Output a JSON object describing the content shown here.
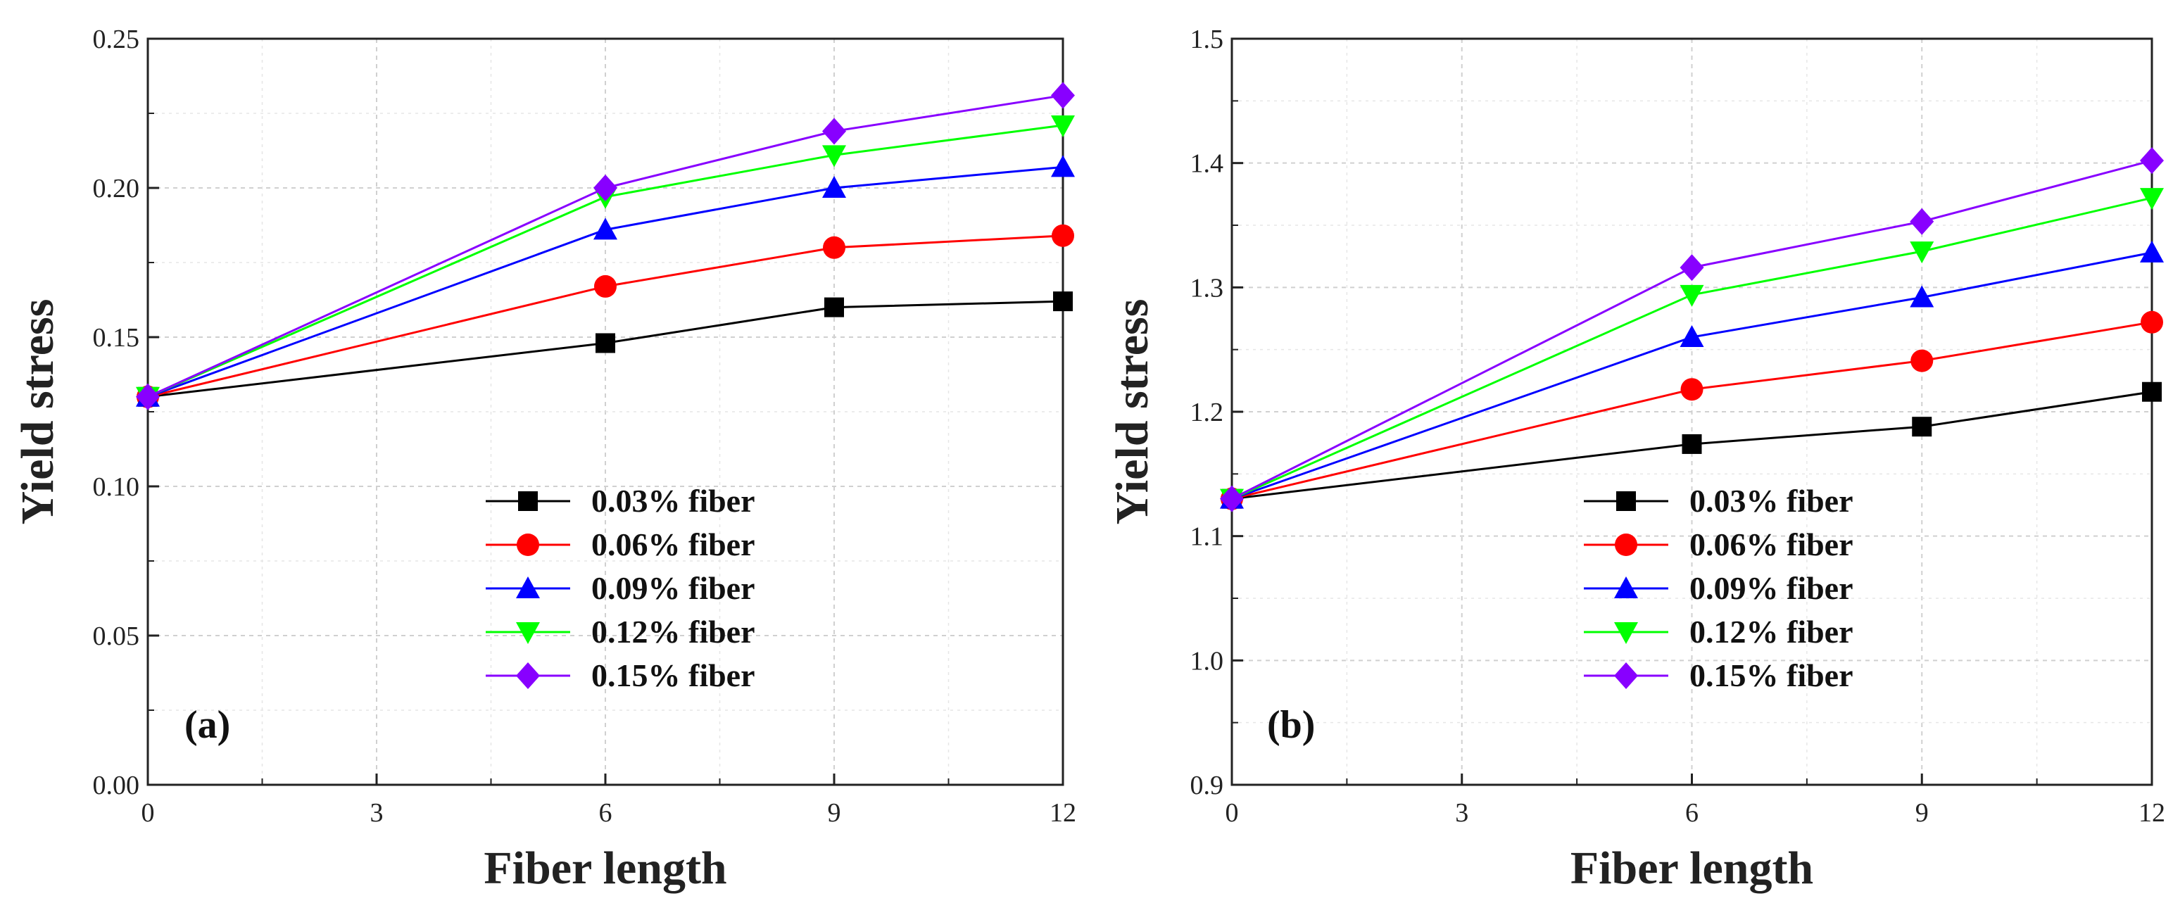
{
  "chart_data": [
    {
      "type": "line",
      "panel_label": "(a)",
      "xlabel": "Fiber length",
      "ylabel": "Yield stress",
      "x": [
        0,
        6,
        9,
        12
      ],
      "xlim": [
        0,
        12
      ],
      "ylim": [
        0.0,
        0.25
      ],
      "xticks": [
        "0",
        "3",
        "6",
        "9",
        "12"
      ],
      "yticks": [
        "0.00",
        "0.05",
        "0.10",
        "0.15",
        "0.20",
        "0.25"
      ],
      "grid": true,
      "legend_position": "lower-center",
      "series": [
        {
          "name": "0.03%  fiber",
          "color": "#000000",
          "marker": "square",
          "values": [
            0.13,
            0.148,
            0.16,
            0.162
          ]
        },
        {
          "name": "0.06%  fiber",
          "color": "#ff0000",
          "marker": "circle",
          "values": [
            0.13,
            0.167,
            0.18,
            0.184
          ]
        },
        {
          "name": "0.09%  fiber",
          "color": "#0000ff",
          "marker": "triangle-up",
          "values": [
            0.13,
            0.186,
            0.2,
            0.207
          ]
        },
        {
          "name": "0.12%  fiber",
          "color": "#00ff00",
          "marker": "triangle-down",
          "values": [
            0.13,
            0.197,
            0.211,
            0.221
          ]
        },
        {
          "name": "0.15%  fiber",
          "color": "#8800ff",
          "marker": "diamond",
          "values": [
            0.13,
            0.2,
            0.219,
            0.231
          ]
        }
      ]
    },
    {
      "type": "line",
      "panel_label": "(b)",
      "xlabel": "Fiber length",
      "ylabel": "Yield stress",
      "x": [
        0,
        6,
        9,
        12
      ],
      "xlim": [
        0,
        12
      ],
      "ylim": [
        0.9,
        1.5
      ],
      "xticks": [
        "0",
        "3",
        "6",
        "9",
        "12"
      ],
      "yticks": [
        "0.9",
        "1.0",
        "1.1",
        "1.2",
        "1.3",
        "1.4",
        "1.5"
      ],
      "grid": true,
      "legend_position": "lower-center",
      "series": [
        {
          "name": "0.03%  fiber",
          "color": "#000000",
          "marker": "square",
          "values": [
            1.13,
            1.174,
            1.188,
            1.216
          ]
        },
        {
          "name": "0.06%  fiber",
          "color": "#ff0000",
          "marker": "circle",
          "values": [
            1.13,
            1.218,
            1.241,
            1.272
          ]
        },
        {
          "name": "0.09%  fiber",
          "color": "#0000ff",
          "marker": "triangle-up",
          "values": [
            1.13,
            1.26,
            1.292,
            1.328
          ]
        },
        {
          "name": "0.12%  fiber",
          "color": "#00ff00",
          "marker": "triangle-down",
          "values": [
            1.13,
            1.294,
            1.329,
            1.372
          ]
        },
        {
          "name": "0.15%  fiber",
          "color": "#8800ff",
          "marker": "diamond",
          "values": [
            1.13,
            1.316,
            1.353,
            1.402
          ]
        }
      ]
    }
  ]
}
